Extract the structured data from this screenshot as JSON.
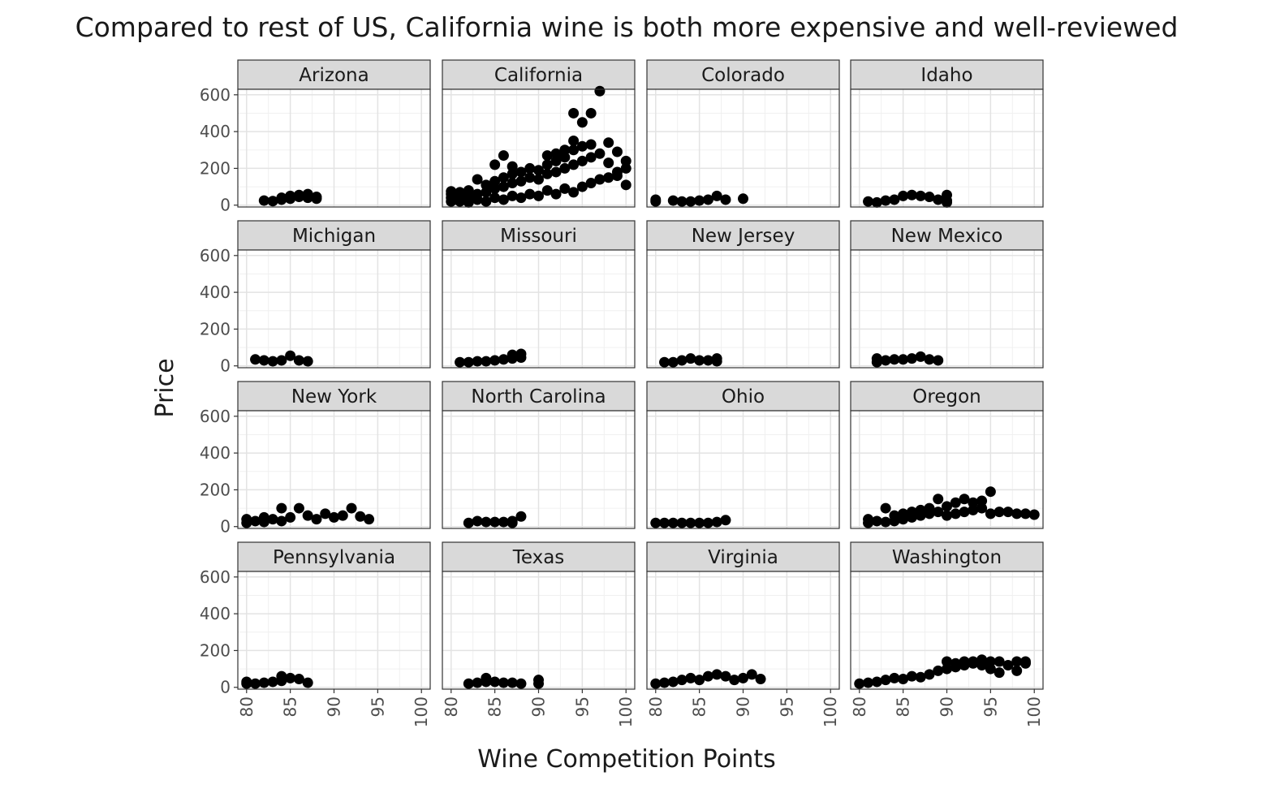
{
  "chart_data": {
    "type": "scatter",
    "title": "Compared to rest of US, California wine is both more expensive and well-reviewed",
    "xlabel": "Wine Competition Points",
    "ylabel": "Price",
    "xlim": [
      79,
      101
    ],
    "ylim": [
      -10,
      630
    ],
    "x_ticks": [
      80,
      85,
      90,
      95,
      100
    ],
    "y_ticks": [
      0,
      200,
      400,
      600
    ],
    "grid": true,
    "facets": [
      {
        "state": "Arizona",
        "points": [
          [
            82,
            25
          ],
          [
            83,
            22
          ],
          [
            84,
            30
          ],
          [
            84,
            40
          ],
          [
            85,
            35
          ],
          [
            85,
            50
          ],
          [
            86,
            45
          ],
          [
            86,
            55
          ],
          [
            87,
            40
          ],
          [
            87,
            60
          ],
          [
            88,
            45
          ],
          [
            88,
            35
          ]
        ]
      },
      {
        "state": "California",
        "points": [
          [
            80,
            20
          ],
          [
            80,
            40
          ],
          [
            80,
            60
          ],
          [
            80,
            75
          ],
          [
            81,
            20
          ],
          [
            81,
            45
          ],
          [
            81,
            70
          ],
          [
            82,
            15
          ],
          [
            82,
            50
          ],
          [
            82,
            80
          ],
          [
            83,
            30
          ],
          [
            83,
            60
          ],
          [
            83,
            140
          ],
          [
            84,
            20
          ],
          [
            84,
            70
          ],
          [
            84,
            110
          ],
          [
            85,
            40
          ],
          [
            85,
            90
          ],
          [
            85,
            130
          ],
          [
            85,
            220
          ],
          [
            86,
            30
          ],
          [
            86,
            100
          ],
          [
            86,
            150
          ],
          [
            86,
            270
          ],
          [
            87,
            50
          ],
          [
            87,
            120
          ],
          [
            87,
            170
          ],
          [
            87,
            210
          ],
          [
            88,
            40
          ],
          [
            88,
            130
          ],
          [
            88,
            180
          ],
          [
            89,
            60
          ],
          [
            89,
            150
          ],
          [
            89,
            200
          ],
          [
            90,
            50
          ],
          [
            90,
            140
          ],
          [
            90,
            190
          ],
          [
            91,
            80
          ],
          [
            91,
            170
          ],
          [
            91,
            220
          ],
          [
            91,
            270
          ],
          [
            92,
            60
          ],
          [
            92,
            180
          ],
          [
            92,
            240
          ],
          [
            92,
            280
          ],
          [
            93,
            90
          ],
          [
            93,
            200
          ],
          [
            93,
            260
          ],
          [
            93,
            300
          ],
          [
            94,
            70
          ],
          [
            94,
            220
          ],
          [
            94,
            300
          ],
          [
            94,
            350
          ],
          [
            94,
            500
          ],
          [
            95,
            100
          ],
          [
            95,
            240
          ],
          [
            95,
            320
          ],
          [
            95,
            450
          ],
          [
            96,
            120
          ],
          [
            96,
            260
          ],
          [
            96,
            330
          ],
          [
            96,
            500
          ],
          [
            97,
            140
          ],
          [
            97,
            280
          ],
          [
            97,
            620
          ],
          [
            98,
            150
          ],
          [
            98,
            230
          ],
          [
            98,
            340
          ],
          [
            99,
            180
          ],
          [
            99,
            290
          ],
          [
            99,
            160
          ],
          [
            100,
            110
          ],
          [
            100,
            200
          ],
          [
            100,
            240
          ]
        ]
      },
      {
        "state": "Colorado",
        "points": [
          [
            80,
            20
          ],
          [
            80,
            30
          ],
          [
            82,
            25
          ],
          [
            83,
            20
          ],
          [
            84,
            20
          ],
          [
            85,
            25
          ],
          [
            86,
            30
          ],
          [
            87,
            50
          ],
          [
            88,
            30
          ],
          [
            90,
            35
          ]
        ]
      },
      {
        "state": "Idaho",
        "points": [
          [
            81,
            20
          ],
          [
            82,
            15
          ],
          [
            83,
            25
          ],
          [
            84,
            30
          ],
          [
            85,
            50
          ],
          [
            86,
            55
          ],
          [
            87,
            50
          ],
          [
            88,
            45
          ],
          [
            89,
            30
          ],
          [
            90,
            25
          ],
          [
            90,
            55
          ],
          [
            90,
            15
          ]
        ]
      },
      {
        "state": "Michigan",
        "points": [
          [
            81,
            35
          ],
          [
            82,
            30
          ],
          [
            83,
            25
          ],
          [
            84,
            30
          ],
          [
            85,
            55
          ],
          [
            86,
            30
          ],
          [
            87,
            25
          ]
        ]
      },
      {
        "state": "Missouri",
        "points": [
          [
            81,
            20
          ],
          [
            82,
            20
          ],
          [
            83,
            25
          ],
          [
            84,
            25
          ],
          [
            85,
            30
          ],
          [
            86,
            35
          ],
          [
            87,
            40
          ],
          [
            87,
            60
          ],
          [
            88,
            45
          ],
          [
            88,
            65
          ]
        ]
      },
      {
        "state": "New Jersey",
        "points": [
          [
            81,
            20
          ],
          [
            82,
            20
          ],
          [
            83,
            30
          ],
          [
            84,
            40
          ],
          [
            85,
            30
          ],
          [
            86,
            30
          ],
          [
            87,
            25
          ],
          [
            87,
            40
          ]
        ]
      },
      {
        "state": "New Mexico",
        "points": [
          [
            82,
            20
          ],
          [
            82,
            40
          ],
          [
            83,
            30
          ],
          [
            84,
            35
          ],
          [
            85,
            35
          ],
          [
            86,
            40
          ],
          [
            87,
            50
          ],
          [
            88,
            35
          ],
          [
            89,
            30
          ]
        ]
      },
      {
        "state": "New York",
        "points": [
          [
            80,
            20
          ],
          [
            80,
            40
          ],
          [
            81,
            30
          ],
          [
            82,
            25
          ],
          [
            82,
            50
          ],
          [
            83,
            40
          ],
          [
            84,
            100
          ],
          [
            84,
            30
          ],
          [
            85,
            50
          ],
          [
            86,
            100
          ],
          [
            87,
            60
          ],
          [
            88,
            40
          ],
          [
            89,
            70
          ],
          [
            90,
            50
          ],
          [
            91,
            60
          ],
          [
            92,
            100
          ],
          [
            93,
            55
          ],
          [
            94,
            40
          ]
        ]
      },
      {
        "state": "North Carolina",
        "points": [
          [
            82,
            20
          ],
          [
            83,
            30
          ],
          [
            84,
            25
          ],
          [
            85,
            25
          ],
          [
            86,
            25
          ],
          [
            87,
            30
          ],
          [
            87,
            20
          ],
          [
            88,
            55
          ]
        ]
      },
      {
        "state": "Ohio",
        "points": [
          [
            80,
            20
          ],
          [
            81,
            20
          ],
          [
            82,
            20
          ],
          [
            83,
            20
          ],
          [
            84,
            20
          ],
          [
            85,
            20
          ],
          [
            86,
            20
          ],
          [
            87,
            25
          ],
          [
            88,
            35
          ]
        ]
      },
      {
        "state": "Oregon",
        "points": [
          [
            81,
            20
          ],
          [
            81,
            40
          ],
          [
            82,
            30
          ],
          [
            83,
            25
          ],
          [
            83,
            100
          ],
          [
            84,
            30
          ],
          [
            84,
            60
          ],
          [
            85,
            40
          ],
          [
            85,
            70
          ],
          [
            86,
            50
          ],
          [
            86,
            80
          ],
          [
            87,
            60
          ],
          [
            87,
            90
          ],
          [
            88,
            70
          ],
          [
            88,
            100
          ],
          [
            89,
            80
          ],
          [
            89,
            150
          ],
          [
            90,
            60
          ],
          [
            90,
            110
          ],
          [
            91,
            70
          ],
          [
            91,
            130
          ],
          [
            92,
            80
          ],
          [
            92,
            150
          ],
          [
            93,
            90
          ],
          [
            93,
            130
          ],
          [
            94,
            100
          ],
          [
            94,
            140
          ],
          [
            95,
            190
          ],
          [
            95,
            70
          ],
          [
            96,
            80
          ],
          [
            97,
            80
          ],
          [
            98,
            70
          ],
          [
            99,
            70
          ],
          [
            100,
            65
          ]
        ]
      },
      {
        "state": "Pennsylvania",
        "points": [
          [
            80,
            20
          ],
          [
            80,
            30
          ],
          [
            81,
            20
          ],
          [
            82,
            25
          ],
          [
            83,
            30
          ],
          [
            84,
            35
          ],
          [
            84,
            60
          ],
          [
            85,
            50
          ],
          [
            86,
            45
          ],
          [
            87,
            25
          ]
        ]
      },
      {
        "state": "Texas",
        "points": [
          [
            82,
            20
          ],
          [
            83,
            25
          ],
          [
            84,
            30
          ],
          [
            84,
            50
          ],
          [
            85,
            30
          ],
          [
            86,
            25
          ],
          [
            87,
            25
          ],
          [
            88,
            20
          ],
          [
            90,
            20
          ],
          [
            90,
            40
          ]
        ]
      },
      {
        "state": "Virginia",
        "points": [
          [
            80,
            20
          ],
          [
            81,
            25
          ],
          [
            82,
            30
          ],
          [
            83,
            40
          ],
          [
            84,
            50
          ],
          [
            85,
            40
          ],
          [
            86,
            60
          ],
          [
            87,
            70
          ],
          [
            88,
            60
          ],
          [
            89,
            40
          ],
          [
            90,
            50
          ],
          [
            91,
            70
          ],
          [
            92,
            45
          ]
        ]
      },
      {
        "state": "Washington",
        "points": [
          [
            80,
            20
          ],
          [
            81,
            25
          ],
          [
            82,
            30
          ],
          [
            83,
            40
          ],
          [
            84,
            50
          ],
          [
            85,
            45
          ],
          [
            86,
            60
          ],
          [
            87,
            55
          ],
          [
            88,
            70
          ],
          [
            89,
            90
          ],
          [
            90,
            100
          ],
          [
            90,
            140
          ],
          [
            91,
            110
          ],
          [
            91,
            130
          ],
          [
            92,
            120
          ],
          [
            92,
            140
          ],
          [
            93,
            130
          ],
          [
            93,
            140
          ],
          [
            94,
            150
          ],
          [
            94,
            120
          ],
          [
            95,
            140
          ],
          [
            95,
            100
          ],
          [
            96,
            140
          ],
          [
            96,
            80
          ],
          [
            97,
            120
          ],
          [
            98,
            140
          ],
          [
            98,
            90
          ],
          [
            99,
            130
          ],
          [
            99,
            140
          ]
        ]
      }
    ]
  }
}
